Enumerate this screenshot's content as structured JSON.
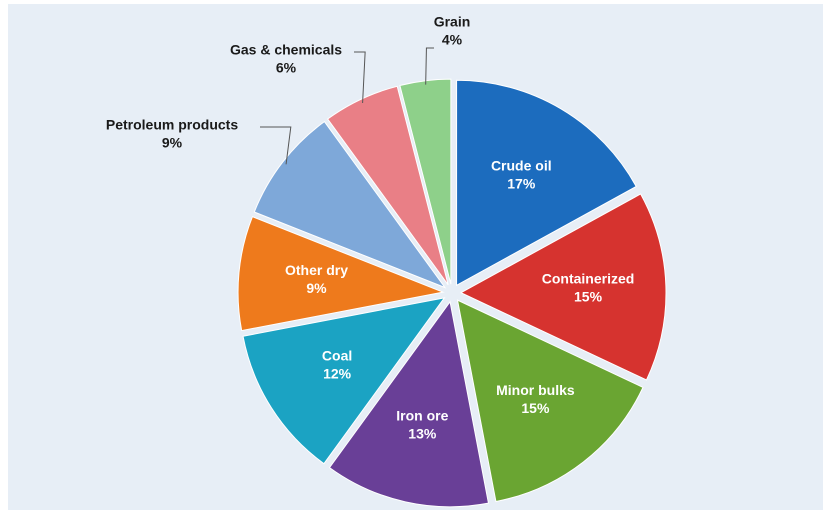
{
  "chart_data": {
    "type": "pie",
    "categories": [
      "Crude oil",
      "Containerized",
      "Minor bulks",
      "Iron ore",
      "Coal",
      "Other dry",
      "Petroleum products",
      "Gas & chemicals",
      "Grain"
    ],
    "values": [
      17,
      15,
      15,
      13,
      12,
      9,
      9,
      6,
      4
    ],
    "value_labels": [
      "17%",
      "15%",
      "15%",
      "13%",
      "12%",
      "9%",
      "9%",
      "6%",
      "4%"
    ],
    "colors": [
      "#1c6cbe",
      "#d6332f",
      "#6aa532",
      "#693f97",
      "#1ba3c3",
      "#ee7a1c",
      "#7ea8d9",
      "#e97f86",
      "#8ed08a"
    ]
  }
}
